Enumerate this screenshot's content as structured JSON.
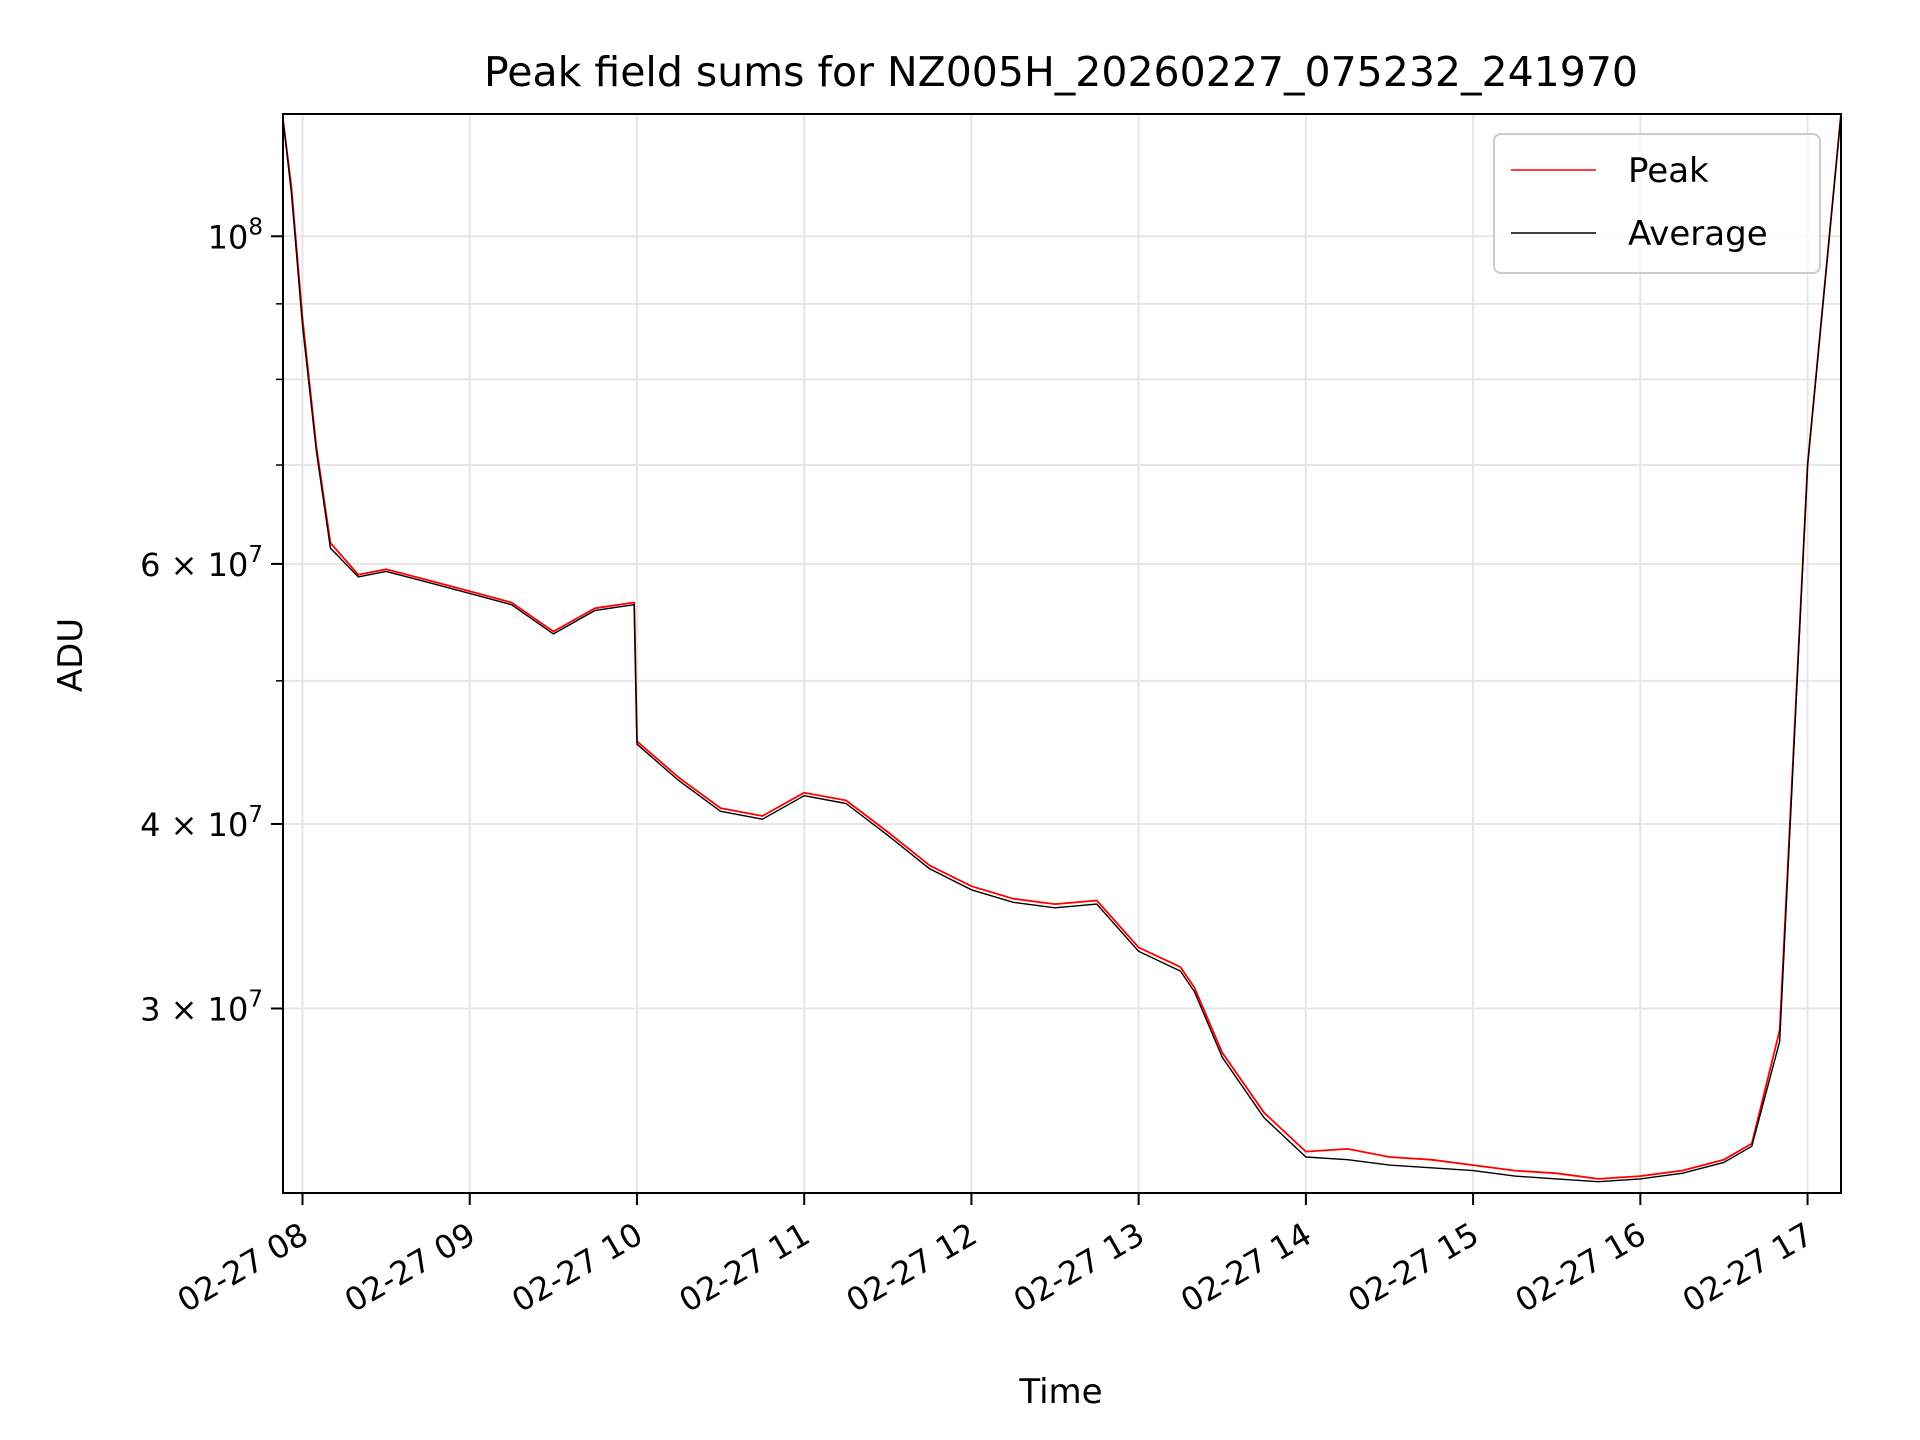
{
  "chart_data": {
    "type": "line",
    "title": "Peak field sums for NZ005H_20260227_075232_241970",
    "xlabel": "Time",
    "ylabel": "ADU",
    "yscale": "log",
    "ylim": [
      22500000,
      121000000
    ],
    "xlim": [
      "2026-02-27 07:53",
      "2026-02-27 17:12"
    ],
    "grid": true,
    "legend_position": "top-right",
    "x_ticks": [
      {
        "t": "2026-02-27 08:00",
        "label": "02-27 08"
      },
      {
        "t": "2026-02-27 09:00",
        "label": "02-27 09"
      },
      {
        "t": "2026-02-27 10:00",
        "label": "02-27 10"
      },
      {
        "t": "2026-02-27 11:00",
        "label": "02-27 11"
      },
      {
        "t": "2026-02-27 12:00",
        "label": "02-27 12"
      },
      {
        "t": "2026-02-27 13:00",
        "label": "02-27 13"
      },
      {
        "t": "2026-02-27 14:00",
        "label": "02-27 14"
      },
      {
        "t": "2026-02-27 15:00",
        "label": "02-27 15"
      },
      {
        "t": "2026-02-27 16:00",
        "label": "02-27 16"
      },
      {
        "t": "2026-02-27 17:00",
        "label": "02-27 17"
      }
    ],
    "y_ticks": [
      {
        "v": 100000000,
        "mant": "10",
        "exp": "8"
      },
      {
        "v": 60000000,
        "mant": "6 × 10",
        "exp": "7"
      },
      {
        "v": 40000000,
        "mant": "4 × 10",
        "exp": "7"
      },
      {
        "v": 30000000,
        "mant": "3 × 10",
        "exp": "7"
      }
    ],
    "y_minor_ticks": [
      90000000,
      80000000,
      70000000,
      50000000
    ],
    "series": [
      {
        "name": "Peak",
        "color": "#ff0000",
        "x": [
          "2026-02-27 07:53",
          "2026-02-27 07:56",
          "2026-02-27 08:00",
          "2026-02-27 08:05",
          "2026-02-27 08:10",
          "2026-02-27 08:20",
          "2026-02-27 08:30",
          "2026-02-27 08:45",
          "2026-02-27 09:00",
          "2026-02-27 09:15",
          "2026-02-27 09:30",
          "2026-02-27 09:45",
          "2026-02-27 09:59",
          "2026-02-27 10:00",
          "2026-02-27 10:15",
          "2026-02-27 10:30",
          "2026-02-27 10:45",
          "2026-02-27 11:00",
          "2026-02-27 11:15",
          "2026-02-27 11:30",
          "2026-02-27 11:45",
          "2026-02-27 12:00",
          "2026-02-27 12:15",
          "2026-02-27 12:30",
          "2026-02-27 12:45",
          "2026-02-27 13:00",
          "2026-02-27 13:15",
          "2026-02-27 13:20",
          "2026-02-27 13:30",
          "2026-02-27 13:45",
          "2026-02-27 14:00",
          "2026-02-27 14:15",
          "2026-02-27 14:30",
          "2026-02-27 14:45",
          "2026-02-27 15:00",
          "2026-02-27 15:15",
          "2026-02-27 15:30",
          "2026-02-27 15:45",
          "2026-02-27 16:00",
          "2026-02-27 16:15",
          "2026-02-27 16:30",
          "2026-02-27 16:40",
          "2026-02-27 16:50",
          "2026-02-27 17:00",
          "2026-02-27 17:12"
        ],
        "values": [
          120000000,
          108000000,
          88000000,
          72000000,
          62000000,
          59000000,
          59500000,
          58500000,
          57500000,
          56500000,
          54000000,
          56000000,
          56500000,
          45500000,
          43000000,
          41000000,
          40500000,
          42000000,
          41500000,
          39500000,
          37500000,
          36300000,
          35600000,
          35300000,
          35500000,
          33000000,
          32000000,
          31000000,
          28000000,
          25500000,
          24000000,
          24100000,
          23800000,
          23700000,
          23500000,
          23300000,
          23200000,
          23000000,
          23100000,
          23300000,
          23700000,
          24300000,
          29000000,
          70000000,
          121000000
        ]
      },
      {
        "name": "Average",
        "color": "#000000",
        "x": [
          "2026-02-27 07:53",
          "2026-02-27 07:56",
          "2026-02-27 08:00",
          "2026-02-27 08:05",
          "2026-02-27 08:10",
          "2026-02-27 08:20",
          "2026-02-27 08:30",
          "2026-02-27 08:45",
          "2026-02-27 09:00",
          "2026-02-27 09:15",
          "2026-02-27 09:30",
          "2026-02-27 09:45",
          "2026-02-27 09:59",
          "2026-02-27 10:00",
          "2026-02-27 10:15",
          "2026-02-27 10:30",
          "2026-02-27 10:45",
          "2026-02-27 11:00",
          "2026-02-27 11:15",
          "2026-02-27 11:30",
          "2026-02-27 11:45",
          "2026-02-27 12:00",
          "2026-02-27 12:15",
          "2026-02-27 12:30",
          "2026-02-27 12:45",
          "2026-02-27 13:00",
          "2026-02-27 13:15",
          "2026-02-27 13:20",
          "2026-02-27 13:30",
          "2026-02-27 13:45",
          "2026-02-27 14:00",
          "2026-02-27 14:15",
          "2026-02-27 14:30",
          "2026-02-27 14:45",
          "2026-02-27 15:00",
          "2026-02-27 15:15",
          "2026-02-27 15:30",
          "2026-02-27 15:45",
          "2026-02-27 16:00",
          "2026-02-27 16:15",
          "2026-02-27 16:30",
          "2026-02-27 16:40",
          "2026-02-27 16:50",
          "2026-02-27 17:00",
          "2026-02-27 17:12"
        ],
        "values": [
          120000000,
          107000000,
          87000000,
          71500000,
          61500000,
          58800000,
          59300000,
          58300000,
          57300000,
          56300000,
          53800000,
          55800000,
          56300000,
          45300000,
          42800000,
          40800000,
          40300000,
          41800000,
          41300000,
          39300000,
          37300000,
          36100000,
          35400000,
          35100000,
          35300000,
          32800000,
          31800000,
          30800000,
          27800000,
          25300000,
          23800000,
          23700000,
          23500000,
          23400000,
          23300000,
          23100000,
          23000000,
          22900000,
          23000000,
          23200000,
          23600000,
          24200000,
          28500000,
          70000000,
          121000000
        ]
      }
    ]
  }
}
